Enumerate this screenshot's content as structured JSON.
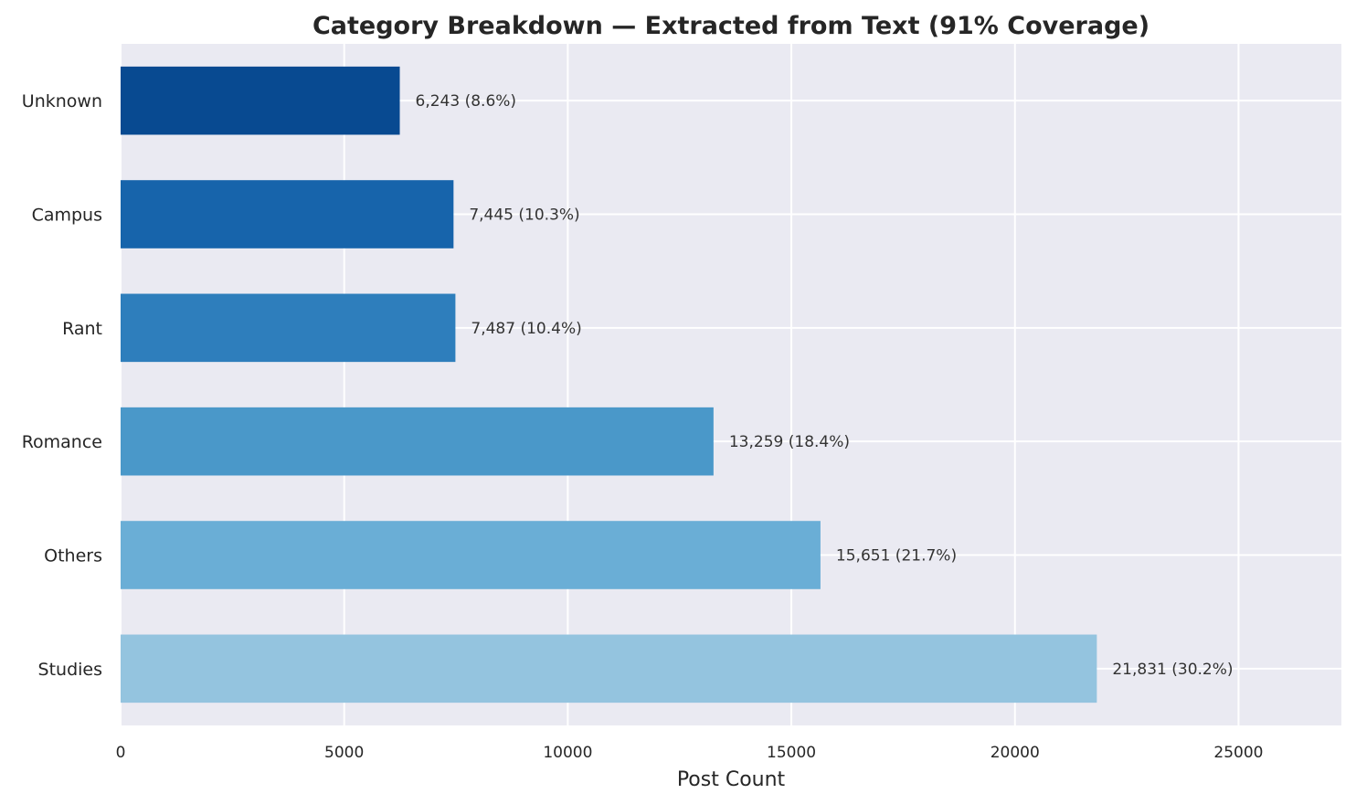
{
  "chart_data": {
    "type": "bar",
    "orientation": "horizontal",
    "title": "Category Breakdown — Extracted from Text (91% Coverage)",
    "xlabel": "Post Count",
    "ylabel": "",
    "xlim": [
      0,
      27300
    ],
    "xticks": [
      0,
      5000,
      10000,
      15000,
      20000,
      25000
    ],
    "grid": true,
    "categories": [
      "Unknown",
      "Campus",
      "Rant",
      "Romance",
      "Others",
      "Studies"
    ],
    "values": [
      6243,
      7445,
      7487,
      13259,
      15651,
      21831
    ],
    "data_labels": [
      "6,243 (8.6%)",
      "7,445 (10.3%)",
      "7,487 (10.4%)",
      "13,259 (18.4%)",
      "15,651 (21.7%)",
      "21,831 (30.2%)"
    ],
    "colors": [
      "#084a91",
      "#1764ab",
      "#2e7ebc",
      "#4a98c9",
      "#6aaed6",
      "#94c4df"
    ],
    "background": "#eaeaf2",
    "grid_color": "#ffffff"
  }
}
